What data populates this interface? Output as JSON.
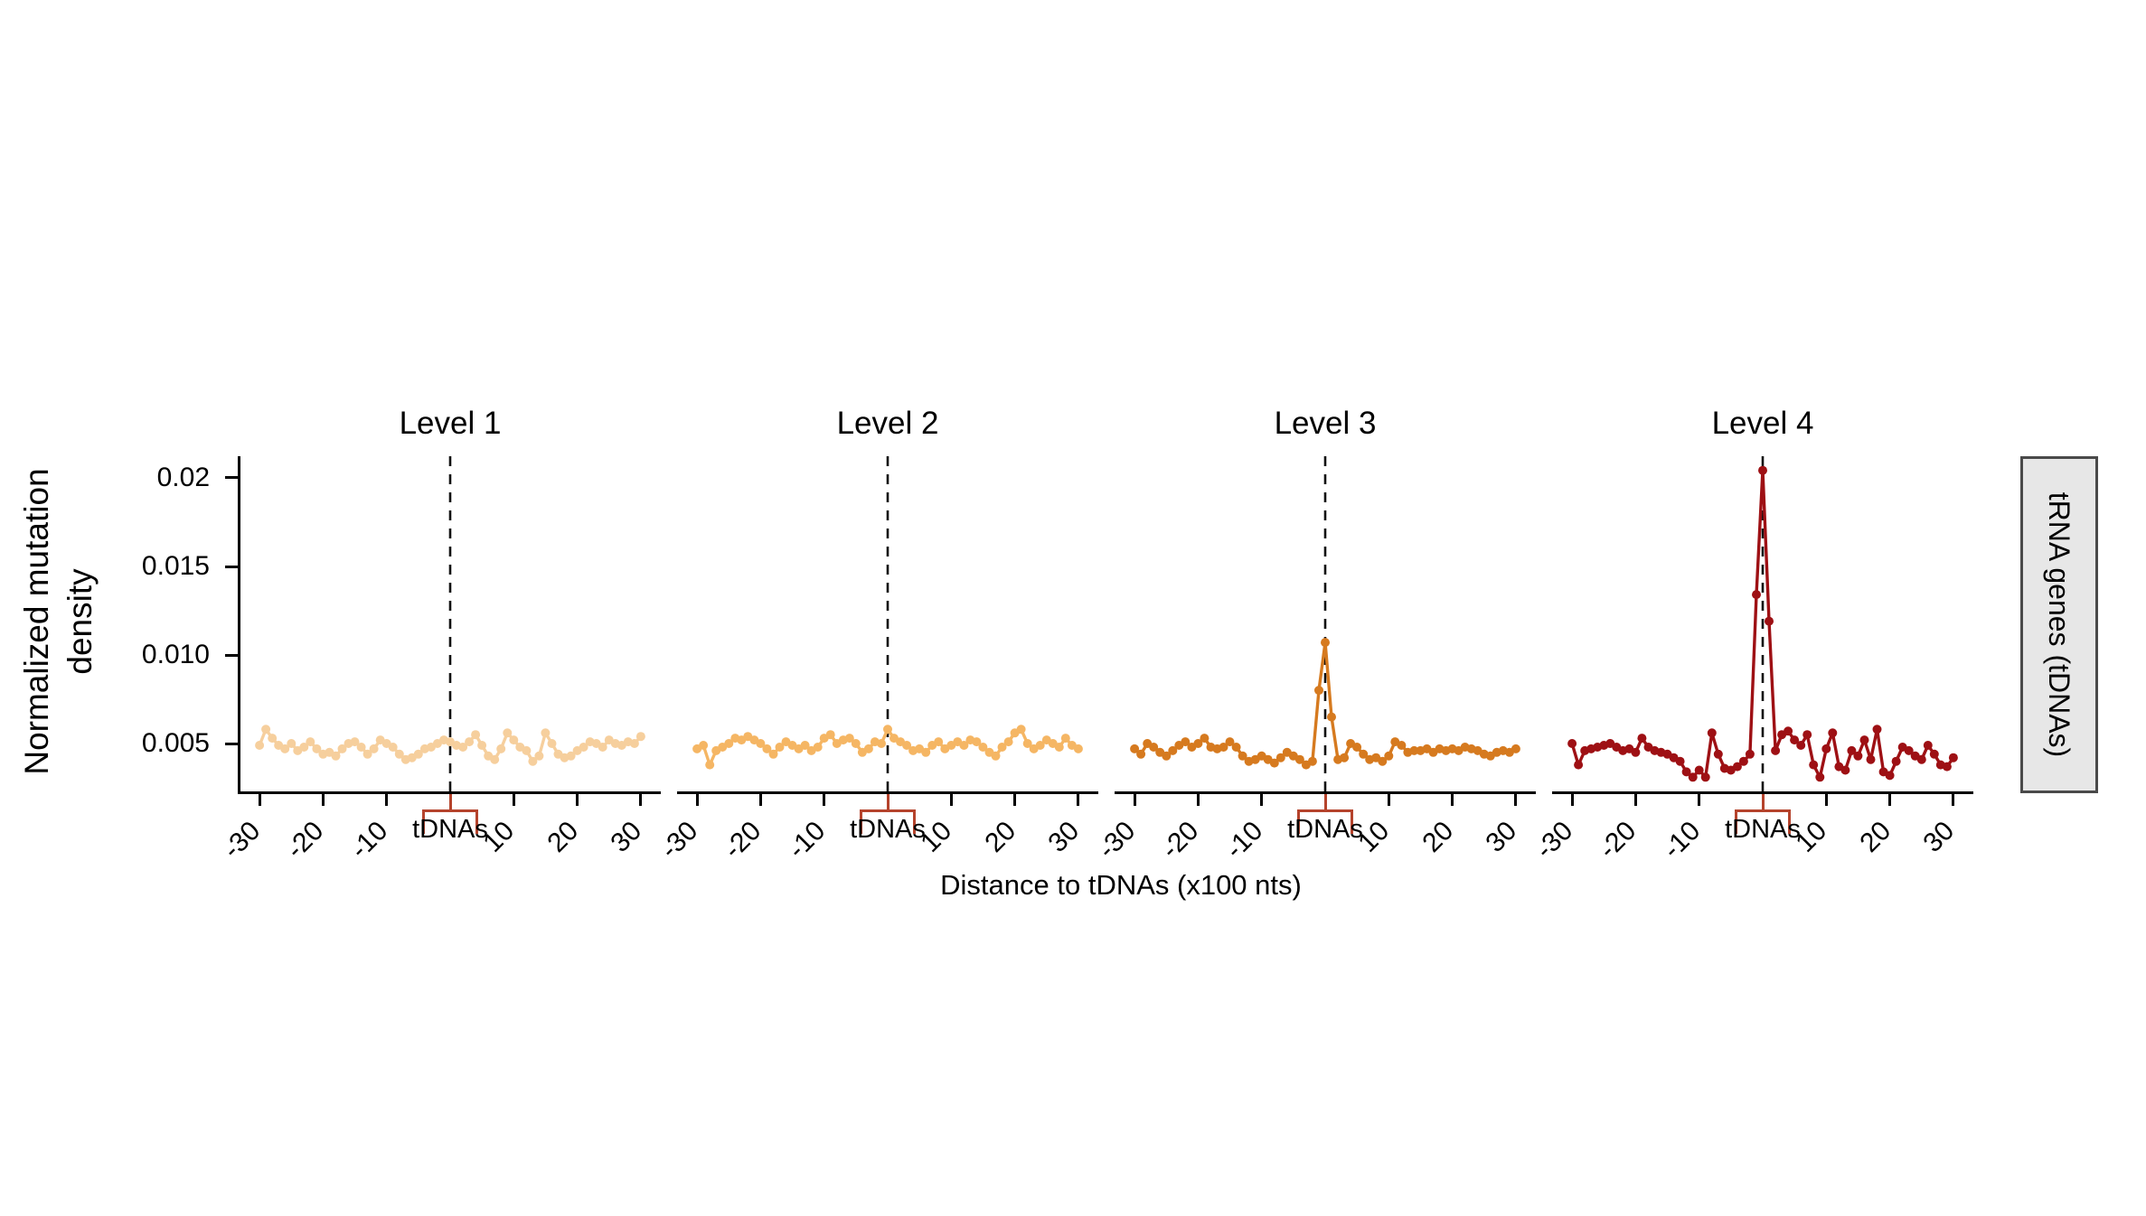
{
  "figure": {
    "y_axis": {
      "label_line1": "Normalized mutation",
      "label_line2": "density",
      "ticks": [
        "0.02",
        "0.015",
        "0.010",
        "0.005"
      ]
    },
    "x_axis": {
      "label": "Distance to tDNAs (x100 nts)"
    },
    "strip": {
      "label": "tRNA genes (tDNAs)",
      "bg_color": "#e7e7e7",
      "border_color": "#4a4a4a"
    },
    "annotation": {
      "bracket_label": "tDNAs",
      "bracket_color": "#b5432c"
    },
    "colors": {
      "axis": "#000000",
      "dashed_line": "#111111"
    }
  },
  "chart_data": {
    "type": "line",
    "title": "",
    "xlabel": "Distance to tDNAs (x100 nts)",
    "ylabel": "Normalized mutation density",
    "facet_strip_label": "tRNA genes (tDNAs)",
    "center_annotation": "tDNAs",
    "grid": false,
    "legend": "none (facet titles above panels)",
    "ylim": [
      0.0022,
      0.0212
    ],
    "y_ticks": [
      0.005,
      0.01,
      0.015,
      0.02
    ],
    "x_ticks": [
      -30,
      -20,
      -10,
      0,
      10,
      20,
      30
    ],
    "x_tick_labels": [
      "-30",
      "-20",
      "-10",
      "10",
      "20",
      "30"
    ],
    "center_dashed_line_x": 0,
    "x": [
      -30,
      -29,
      -28,
      -27,
      -26,
      -25,
      -24,
      -23,
      -22,
      -21,
      -20,
      -19,
      -18,
      -17,
      -16,
      -15,
      -14,
      -13,
      -12,
      -11,
      -10,
      -9,
      -8,
      -7,
      -6,
      -5,
      -4,
      -3,
      -2,
      -1,
      0,
      1,
      2,
      3,
      4,
      5,
      6,
      7,
      8,
      9,
      10,
      11,
      12,
      13,
      14,
      15,
      16,
      17,
      18,
      19,
      20,
      21,
      22,
      23,
      24,
      25,
      26,
      27,
      28,
      29,
      30
    ],
    "panels": [
      {
        "name": "Level 1",
        "color": "#f6cf9d",
        "peak_at_0": 0.0051,
        "values": [
          0.0049,
          0.0058,
          0.0053,
          0.0049,
          0.0047,
          0.005,
          0.0046,
          0.0048,
          0.0051,
          0.0047,
          0.0044,
          0.0045,
          0.0043,
          0.0047,
          0.005,
          0.0051,
          0.0048,
          0.0044,
          0.0047,
          0.0052,
          0.005,
          0.0048,
          0.0044,
          0.0041,
          0.0042,
          0.0044,
          0.0047,
          0.0048,
          0.005,
          0.0052,
          0.0051,
          0.0049,
          0.0048,
          0.0051,
          0.0055,
          0.0049,
          0.0043,
          0.0041,
          0.0047,
          0.0056,
          0.0052,
          0.0048,
          0.0046,
          0.004,
          0.0043,
          0.0056,
          0.005,
          0.0044,
          0.0042,
          0.0043,
          0.0046,
          0.0048,
          0.0051,
          0.005,
          0.0048,
          0.0052,
          0.005,
          0.0049,
          0.0051,
          0.005,
          0.0054
        ]
      },
      {
        "name": "Level 2",
        "color": "#f5b664",
        "peak_at_0": 0.0058,
        "values": [
          0.0047,
          0.0049,
          0.0038,
          0.0046,
          0.0048,
          0.005,
          0.0053,
          0.0052,
          0.0054,
          0.0052,
          0.005,
          0.0047,
          0.0044,
          0.0048,
          0.0051,
          0.0049,
          0.0047,
          0.0049,
          0.0046,
          0.0048,
          0.0053,
          0.0055,
          0.005,
          0.0052,
          0.0053,
          0.005,
          0.0045,
          0.0047,
          0.0051,
          0.005,
          0.0058,
          0.0053,
          0.0051,
          0.0049,
          0.0046,
          0.0047,
          0.0045,
          0.0049,
          0.0051,
          0.0047,
          0.0049,
          0.0051,
          0.0049,
          0.0052,
          0.0051,
          0.0048,
          0.0045,
          0.0043,
          0.0048,
          0.0051,
          0.0056,
          0.0058,
          0.005,
          0.0047,
          0.0049,
          0.0052,
          0.005,
          0.0048,
          0.0053,
          0.0049,
          0.0047
        ]
      },
      {
        "name": "Level 3",
        "color": "#d67a1f",
        "peak_at_0": 0.0107,
        "values": [
          0.0047,
          0.0044,
          0.005,
          0.0048,
          0.0045,
          0.0043,
          0.0046,
          0.0049,
          0.0051,
          0.0048,
          0.005,
          0.0053,
          0.0048,
          0.0047,
          0.0048,
          0.0051,
          0.0048,
          0.0043,
          0.004,
          0.0041,
          0.0043,
          0.0041,
          0.0039,
          0.0042,
          0.0045,
          0.0043,
          0.0041,
          0.0038,
          0.004,
          0.008,
          0.0107,
          0.0065,
          0.0041,
          0.0042,
          0.005,
          0.0048,
          0.0044,
          0.0041,
          0.0042,
          0.004,
          0.0043,
          0.0051,
          0.0049,
          0.0045,
          0.0046,
          0.0046,
          0.0047,
          0.0045,
          0.0047,
          0.0046,
          0.0047,
          0.0046,
          0.0048,
          0.0047,
          0.0046,
          0.0044,
          0.0043,
          0.0045,
          0.0046,
          0.0045,
          0.0047
        ]
      },
      {
        "name": "Level 4",
        "color": "#9e1014",
        "peak_at_0": 0.0204,
        "values": [
          0.005,
          0.0038,
          0.0046,
          0.0047,
          0.0048,
          0.0049,
          0.005,
          0.0048,
          0.0046,
          0.0047,
          0.0045,
          0.0053,
          0.0048,
          0.0046,
          0.0045,
          0.0044,
          0.0042,
          0.004,
          0.0034,
          0.0031,
          0.0035,
          0.0031,
          0.0056,
          0.0044,
          0.0036,
          0.0035,
          0.0037,
          0.004,
          0.0044,
          0.0134,
          0.0204,
          0.0119,
          0.0046,
          0.0055,
          0.0057,
          0.0052,
          0.0049,
          0.0055,
          0.0038,
          0.0031,
          0.0047,
          0.0056,
          0.0037,
          0.0035,
          0.0046,
          0.0043,
          0.0052,
          0.0041,
          0.0058,
          0.0034,
          0.0032,
          0.004,
          0.0048,
          0.0046,
          0.0043,
          0.0041,
          0.0049,
          0.0044,
          0.0038,
          0.0037,
          0.0042
        ]
      }
    ]
  }
}
